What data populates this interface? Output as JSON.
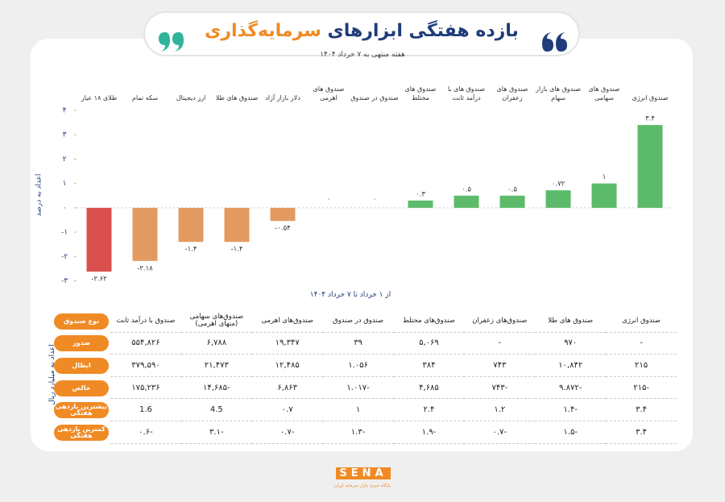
{
  "chart_data": {
    "type": "bar",
    "title": "بازده هفتگی ابزارهای",
    "title_highlight": "سرمایه‌گذاری",
    "subtitle": "هفته منتهی به ۷ خرداد ۱۴۰۴",
    "y_label": "اعداد به درصد",
    "x_note": "از ۱ خرداد تا ۷ خرداد ۱۴۰۴",
    "categories": [
      "طلای ۱۸ عیار",
      "سکه تمام",
      "ارز دیجیتال",
      "صندوق های طلا",
      "دلار بازار آزاد",
      "صندوق های اهرمی",
      "صندوق در صندوق",
      "صندوق های مختلط",
      "صندوق های با درآمد ثابت",
      "صندوق های زعفران",
      "صندوق های بازار سهام",
      "صندوق های سهامی",
      "صندوق انرژی"
    ],
    "values": [
      -2.62,
      -2.18,
      -1.4,
      -1.4,
      -0.54,
      0,
      0,
      0.3,
      0.5,
      0.5,
      0.72,
      1,
      3.4
    ],
    "value_labels": [
      "-۲.۶۲",
      "-۲.۱۸",
      "-۱.۴",
      "-۱.۴",
      "-۰.۵۴",
      "۰",
      "۰",
      "۰.۳",
      "۰.۵",
      "۰.۵",
      "۰.۷۲",
      "۱",
      "۳.۴"
    ],
    "colors": [
      "#d9504f",
      "#e39a61",
      "#e39a61",
      "#e39a61",
      "#e39a61",
      "#5cbb6a",
      "#5cbb6a",
      "#5cbb6a",
      "#5cbb6a",
      "#5cbb6a",
      "#5cbb6a",
      "#5cbb6a",
      "#5cbb6a"
    ],
    "ylim": [
      -3,
      4
    ],
    "yticks": [
      {
        "value": -3,
        "label": "-۳"
      },
      {
        "value": -2,
        "label": "-۲"
      },
      {
        "value": -1,
        "label": "-۱"
      },
      {
        "value": 0,
        "label": "۰"
      },
      {
        "value": 1,
        "label": "۱"
      },
      {
        "value": 2,
        "label": "۲"
      },
      {
        "value": 3,
        "label": "۳"
      },
      {
        "value": 4,
        "label": "۴"
      }
    ]
  },
  "table": {
    "side_label": "اعداد به میلیارد ریال",
    "corner": "نوع صندوق",
    "columns": [
      "صندوق انرژی",
      "صندوق های طلا",
      "صندوق‌های زعفران",
      "صندوق‌های مختلط",
      "صندوق در صندوق",
      "صندوق‌های اهرمی",
      "صندوق‌های سهامی (منهای اهرمی)",
      "صندوق با درآمد ثابت"
    ],
    "row_headers": [
      "صدور",
      "ابطال",
      "خالص",
      "بیشترین بازدهی هفتگی",
      "کمترین بازدهی هفتگی"
    ],
    "rows": [
      [
        "-",
        "۹۷۰",
        "-",
        "۵,۰۶۹",
        "۳۹",
        "۱۹,۳۴۷",
        "۶,۷۸۸",
        "۵۵۴,۸۲۶"
      ],
      [
        "۲۱۵",
        "۱۰,۸۴۲",
        "۷۴۳",
        "۳۸۴",
        "۱.۰۵۶",
        "۱۲,۴۸۵",
        "۲۱,۴۷۳",
        "۳۷۹,۵۹۰"
      ],
      [
        "-۲۱۵",
        "-۹.۸۷۲",
        "-۷۴۳",
        "۴,۶۸۵",
        "-۱.۰۱۷",
        "۶,۸۶۳",
        "-۱۴,۶۸۵",
        "۱۷۵,۲۳۶"
      ],
      [
        "۳.۴",
        "-۱.۴",
        "۱.۲",
        "۲.۴",
        "۱",
        "۰.۷",
        "4.5",
        "1.6"
      ],
      [
        "۳.۴",
        "-۱.۵",
        "-۰.۷",
        "-۱.۹",
        "-۱.۳",
        "-۰.۷",
        "-۳.۱",
        "-۰.۶"
      ]
    ]
  },
  "footer": {
    "logo": "SENA",
    "tagline": "پایگاه خبری بازار سرمایه ایران"
  }
}
